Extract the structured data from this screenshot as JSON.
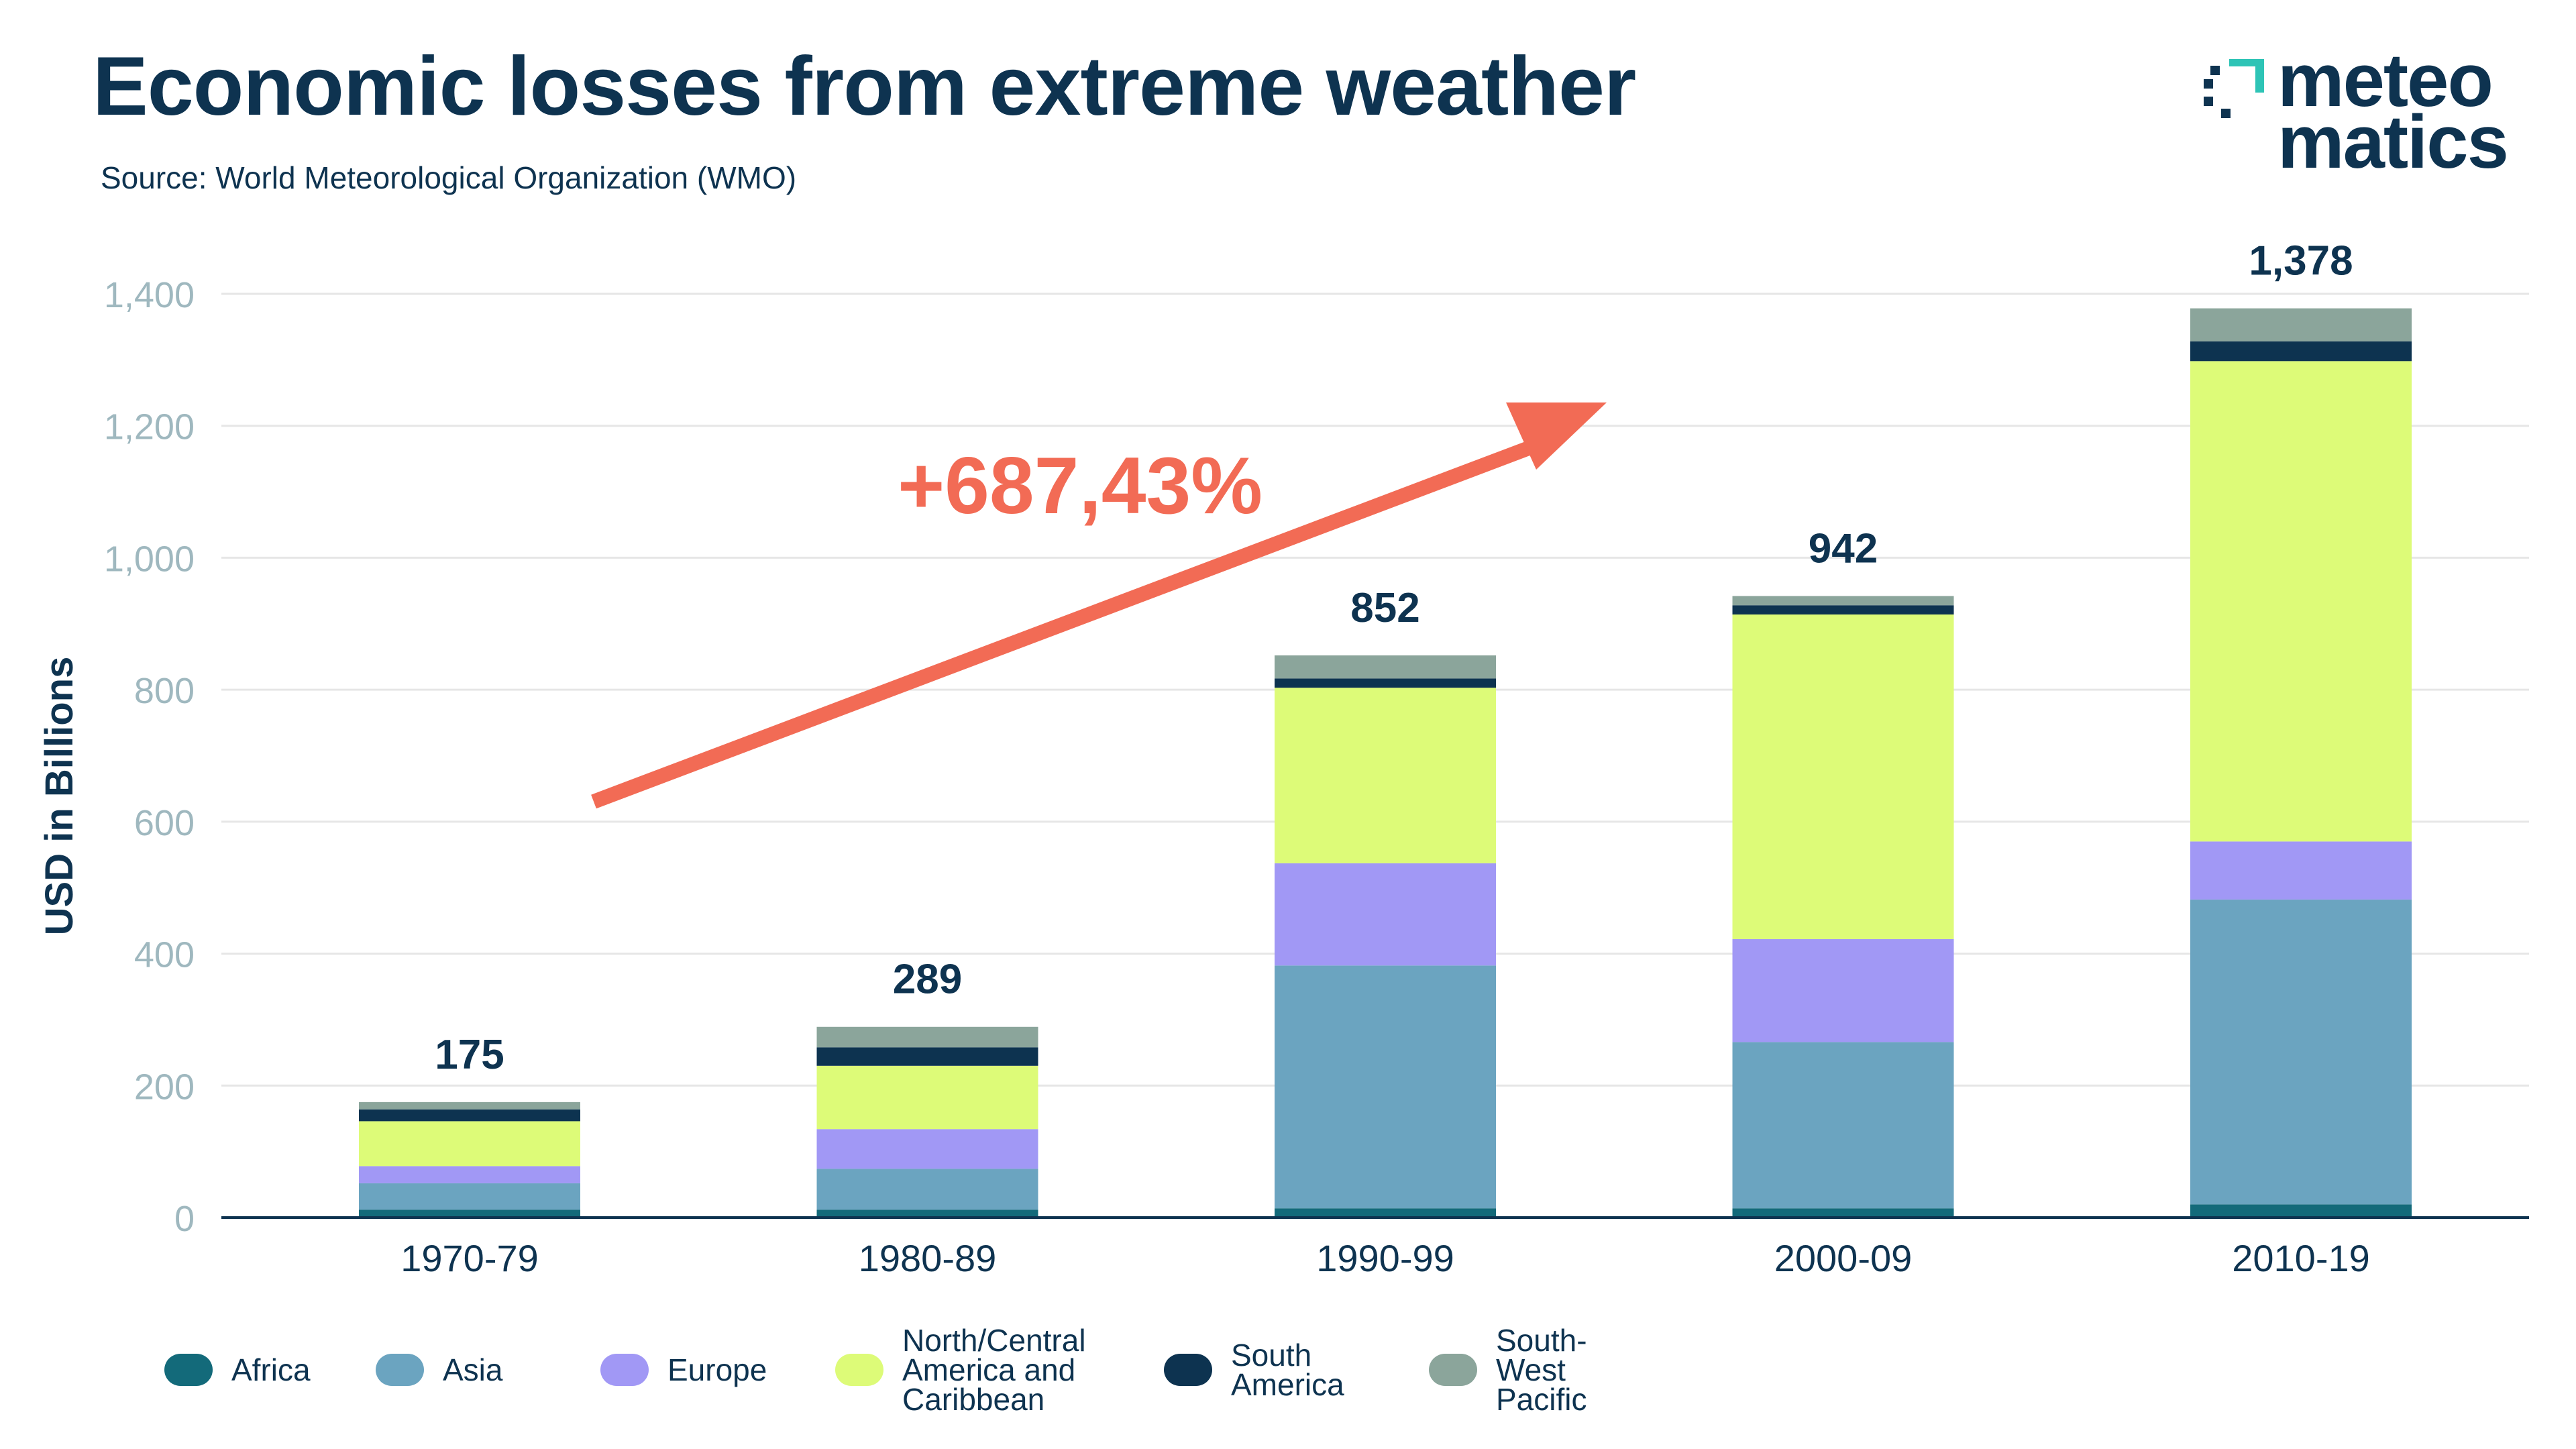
{
  "header": {
    "title": "Economic losses from extreme weather",
    "subtitle": "Source: World Meteorological Organization (WMO)"
  },
  "brand": {
    "line1": "meteo",
    "line2": "matics",
    "mark_color": "#2ec4b6",
    "text_color": "#0e3350"
  },
  "annotation": {
    "text": "+687,43%",
    "color": "#f26b55"
  },
  "colors": {
    "title": "#0e3350",
    "axis_tick": "#9fb8bf",
    "grid": "#e6e6e6",
    "axis_line": "#0e3350"
  },
  "chart_data": {
    "type": "bar",
    "stacked": true,
    "title": "Economic losses from extreme weather",
    "subtitle": "Source: World Meteorological Organization (WMO)",
    "xlabel": "",
    "ylabel": "USD in Billions",
    "ylim": [
      0,
      1400
    ],
    "yticks": [
      0,
      200,
      400,
      600,
      800,
      1000,
      1200,
      1400
    ],
    "ytick_labels": [
      "0",
      "200",
      "400",
      "600",
      "800",
      "1,000",
      "1,200",
      "1,400"
    ],
    "grid": true,
    "legend_position": "bottom-left",
    "categories": [
      "1970-79",
      "1980-89",
      "1990-99",
      "2000-09",
      "2010-19"
    ],
    "totals": [
      175,
      289,
      852,
      942,
      1378
    ],
    "total_labels": [
      "175",
      "289",
      "852",
      "942",
      "1,378"
    ],
    "series": [
      {
        "name": "Africa",
        "color": "#136a7a",
        "values": [
          12,
          12,
          14,
          14,
          20
        ]
      },
      {
        "name": "Asia",
        "color": "#6ba4c0",
        "values": [
          40,
          62,
          368,
          252,
          462
        ]
      },
      {
        "name": "Europe",
        "color": "#a198f5",
        "values": [
          26,
          60,
          155,
          156,
          88
        ]
      },
      {
        "name": "North/Central\nAmerica and\nCaribbean",
        "color": "#ddfb78",
        "values": [
          68,
          96,
          266,
          492,
          728
        ]
      },
      {
        "name": "South\nAmerica",
        "color": "#0d3350",
        "values": [
          18,
          28,
          14,
          14,
          30
        ]
      },
      {
        "name": "South-West\nPacific",
        "color": "#8ba59b",
        "values": [
          11,
          31,
          35,
          14,
          50
        ]
      }
    ]
  }
}
